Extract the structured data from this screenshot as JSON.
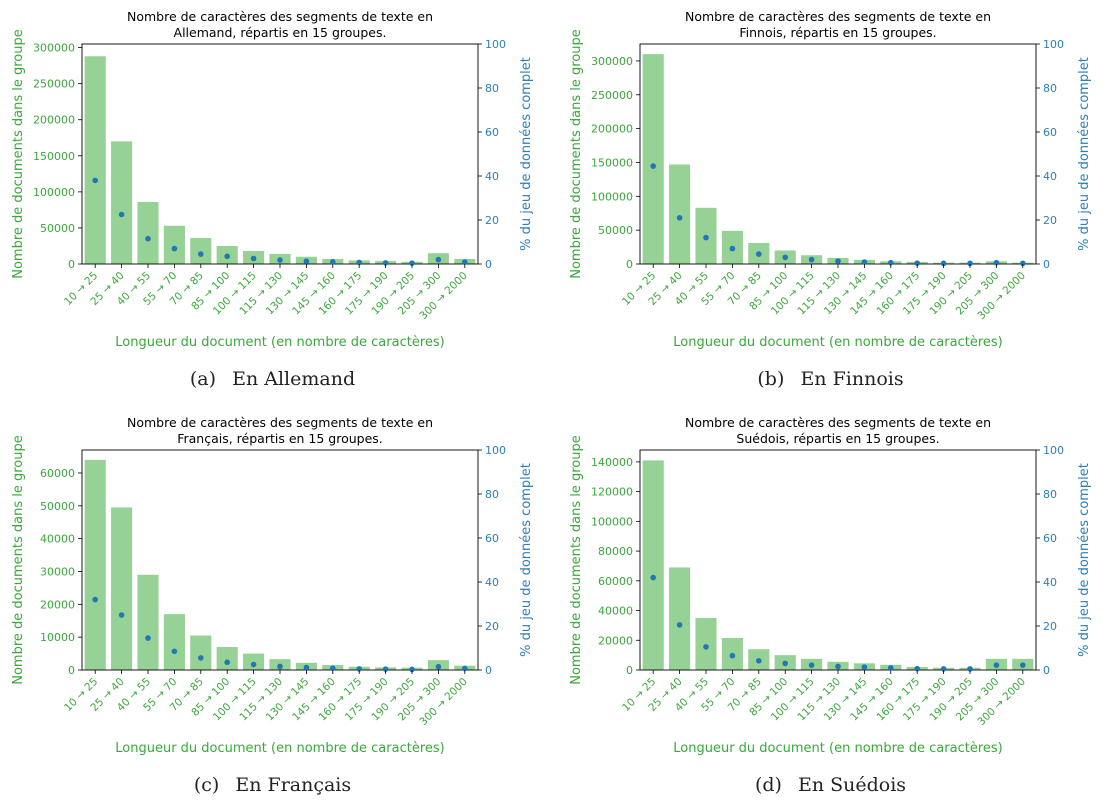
{
  "colors": {
    "bar": "#96d296",
    "dot": "#1f77b4",
    "left_axis": "#3aa83a",
    "right_axis": "#2d7fb8",
    "frame": "#000000"
  },
  "chart_data": [
    {
      "type": "bar",
      "title_lines": [
        "Nombre de caractères des segments de texte en",
        "Allemand, répartis en 15 groupes."
      ],
      "xlabel": "Longueur du document (en nombre de caractères)",
      "ylabel": "Nombre de documents dans le groupe",
      "y2label": "% du jeu de données complet",
      "categories": [
        "10 → 25",
        "25 → 40",
        "40 → 55",
        "55 → 70",
        "70 → 85",
        "85 → 100",
        "100 → 115",
        "115 → 130",
        "130 → 145",
        "145 → 160",
        "160 → 175",
        "175 → 190",
        "190 → 205",
        "205 → 300",
        "300 → 2000"
      ],
      "ylim": [
        0,
        305000
      ],
      "yticks": [
        0,
        50000,
        100000,
        150000,
        200000,
        250000,
        300000
      ],
      "y2lim": [
        0,
        100
      ],
      "y2ticks": [
        0,
        20,
        40,
        60,
        80,
        100
      ],
      "series": [
        {
          "axis": "left",
          "kind": "bar",
          "values": [
            288000,
            170000,
            86000,
            53000,
            36000,
            25000,
            18000,
            14000,
            10000,
            7000,
            5000,
            4000,
            3000,
            15000,
            7000
          ]
        },
        {
          "axis": "right",
          "kind": "point",
          "values": [
            38,
            22.5,
            11.5,
            7,
            4.5,
            3.5,
            2.5,
            1.8,
            1.3,
            1,
            0.7,
            0.5,
            0.4,
            2,
            0.9
          ]
        }
      ],
      "caption_tag": "(a)",
      "caption_text": "En Allemand"
    },
    {
      "type": "bar",
      "title_lines": [
        "Nombre de caractères des segments de texte en",
        "Finnois, répartis en 15 groupes."
      ],
      "xlabel": "Longueur du document (en nombre de caractères)",
      "ylabel": "Nombre de documents dans le groupe",
      "y2label": "% du jeu de données complet",
      "categories": [
        "10 → 25",
        "25 → 40",
        "40 → 55",
        "55 → 70",
        "70 → 85",
        "85 → 100",
        "100 → 115",
        "115 → 130",
        "130 → 145",
        "145 → 160",
        "160 → 175",
        "175 → 190",
        "190 → 205",
        "205 → 300",
        "300 → 2000"
      ],
      "ylim": [
        0,
        325000
      ],
      "yticks": [
        0,
        50000,
        100000,
        150000,
        200000,
        250000,
        300000
      ],
      "y2lim": [
        0,
        100
      ],
      "y2ticks": [
        0,
        20,
        40,
        60,
        80,
        100
      ],
      "series": [
        {
          "axis": "left",
          "kind": "bar",
          "values": [
            310000,
            147000,
            83000,
            49000,
            31000,
            20000,
            13000,
            9000,
            6000,
            4000,
            3000,
            2000,
            2000,
            4000,
            2000
          ]
        },
        {
          "axis": "right",
          "kind": "point",
          "values": [
            44.5,
            21,
            12,
            7,
            4.5,
            3,
            2,
            1.3,
            0.9,
            0.6,
            0.4,
            0.3,
            0.3,
            0.6,
            0.3
          ]
        }
      ],
      "caption_tag": "(b)",
      "caption_text": "En Finnois"
    },
    {
      "type": "bar",
      "title_lines": [
        "Nombre de caractères des segments de texte en",
        "Français, répartis en 15 groupes."
      ],
      "xlabel": "Longueur du document (en nombre de caractères)",
      "ylabel": "Nombre de documents dans le groupe",
      "y2label": "% du jeu de données complet",
      "categories": [
        "10 → 25",
        "25 → 40",
        "40 → 55",
        "55 → 70",
        "70 → 85",
        "85 → 100",
        "100 → 115",
        "115 → 130",
        "130 → 145",
        "145 → 160",
        "160 → 175",
        "175 → 190",
        "190 → 205",
        "205 → 300",
        "300 → 2000"
      ],
      "ylim": [
        0,
        67000
      ],
      "yticks": [
        0,
        10000,
        20000,
        30000,
        40000,
        50000,
        60000
      ],
      "y2lim": [
        0,
        100
      ],
      "y2ticks": [
        0,
        20,
        40,
        60,
        80,
        100
      ],
      "series": [
        {
          "axis": "left",
          "kind": "bar",
          "values": [
            64000,
            49500,
            29000,
            17000,
            10500,
            7000,
            5000,
            3300,
            2200,
            1500,
            1000,
            800,
            700,
            3000,
            1300
          ]
        },
        {
          "axis": "right",
          "kind": "point",
          "values": [
            32,
            25,
            14.5,
            8.5,
            5.5,
            3.5,
            2.5,
            1.6,
            1.1,
            0.8,
            0.5,
            0.4,
            0.3,
            1.5,
            0.7
          ]
        }
      ],
      "caption_tag": "(c)",
      "caption_text": "En Français"
    },
    {
      "type": "bar",
      "title_lines": [
        "Nombre de caractères des segments de texte en",
        "Suédois, répartis en 15 groupes."
      ],
      "xlabel": "Longueur du document (en nombre de caractères)",
      "ylabel": "Nombre de documents dans le groupe",
      "y2label": "% du jeu de données complet",
      "categories": [
        "10 → 25",
        "25 → 40",
        "40 → 55",
        "55 → 70",
        "70 → 85",
        "85 → 100",
        "100 → 115",
        "115 → 130",
        "130 → 145",
        "145 → 160",
        "160 → 175",
        "175 → 190",
        "190 → 205",
        "205 → 300",
        "300 → 2000"
      ],
      "ylim": [
        0,
        148000
      ],
      "yticks": [
        0,
        20000,
        40000,
        60000,
        80000,
        100000,
        120000,
        140000
      ],
      "y2lim": [
        0,
        100
      ],
      "y2ticks": [
        0,
        20,
        40,
        60,
        80,
        100
      ],
      "series": [
        {
          "axis": "left",
          "kind": "bar",
          "values": [
            141000,
            69000,
            35000,
            21500,
            14000,
            10000,
            7500,
            5500,
            4500,
            3500,
            2000,
            1500,
            1500,
            7500,
            7500
          ]
        },
        {
          "axis": "right",
          "kind": "point",
          "values": [
            42,
            20.5,
            10.5,
            6.5,
            4.2,
            3,
            2.2,
            1.6,
            1.3,
            1,
            0.6,
            0.5,
            0.5,
            2.2,
            2.2
          ]
        }
      ],
      "caption_tag": "(d)",
      "caption_text": "En Suédois"
    }
  ]
}
